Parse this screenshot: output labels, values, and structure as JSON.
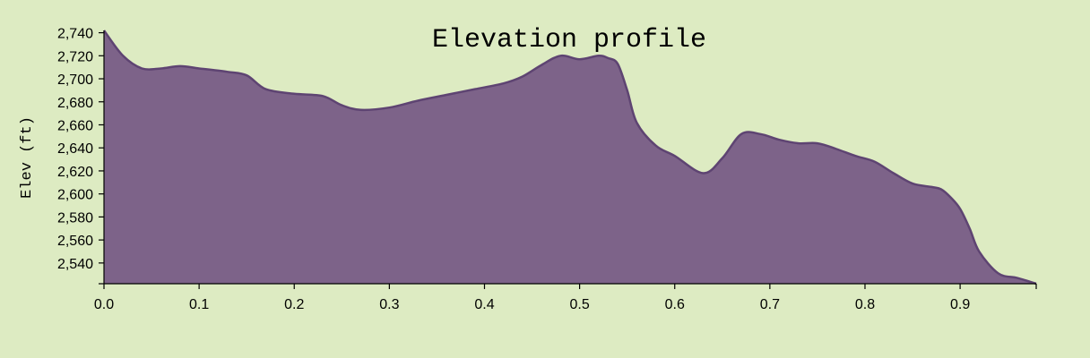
{
  "chart_data": {
    "type": "area",
    "title": "Elevation profile",
    "xlabel": "",
    "ylabel": "Elev (ft)",
    "xlim": [
      0,
      0.98
    ],
    "ylim": [
      2522,
      2742
    ],
    "x_ticks": [
      0.0,
      0.1,
      0.2,
      0.3,
      0.4,
      0.5,
      0.6,
      0.7,
      0.8,
      0.9
    ],
    "x_tick_labels": [
      "0.0",
      "0.1",
      "0.2",
      "0.3",
      "0.4",
      "0.5",
      "0.6",
      "0.7",
      "0.8",
      "0.9"
    ],
    "y_ticks": [
      2540,
      2560,
      2580,
      2600,
      2620,
      2640,
      2660,
      2680,
      2700,
      2720,
      2740
    ],
    "y_tick_labels": [
      "2,540",
      "2,560",
      "2,580",
      "2,600",
      "2,620",
      "2,640",
      "2,660",
      "2,680",
      "2,700",
      "2,720",
      "2,740"
    ],
    "grid": false,
    "fill_color": "#7d6389",
    "line_color": "#5e4472",
    "background_color": "#ddebc2",
    "series": [
      {
        "x": [
          0.0,
          0.02,
          0.04,
          0.06,
          0.08,
          0.1,
          0.13,
          0.15,
          0.17,
          0.2,
          0.23,
          0.25,
          0.27,
          0.3,
          0.33,
          0.36,
          0.39,
          0.42,
          0.44,
          0.46,
          0.48,
          0.5,
          0.52,
          0.53,
          0.54,
          0.55,
          0.56,
          0.58,
          0.6,
          0.63,
          0.65,
          0.67,
          0.69,
          0.71,
          0.73,
          0.75,
          0.77,
          0.79,
          0.81,
          0.83,
          0.85,
          0.87,
          0.88,
          0.89,
          0.9,
          0.91,
          0.92,
          0.94,
          0.96,
          0.98
        ],
        "values": [
          2742,
          2720,
          2709,
          2709,
          2711,
          2709,
          2706,
          2703,
          2691,
          2687,
          2685,
          2677,
          2673,
          2675,
          2681,
          2686,
          2691,
          2696,
          2702,
          2712,
          2720,
          2717,
          2720,
          2718,
          2713,
          2690,
          2662,
          2642,
          2633,
          2618,
          2631,
          2652,
          2652,
          2647,
          2644,
          2644,
          2639,
          2633,
          2628,
          2618,
          2609,
          2606,
          2604,
          2597,
          2587,
          2570,
          2550,
          2531,
          2527,
          2522
        ]
      }
    ]
  }
}
